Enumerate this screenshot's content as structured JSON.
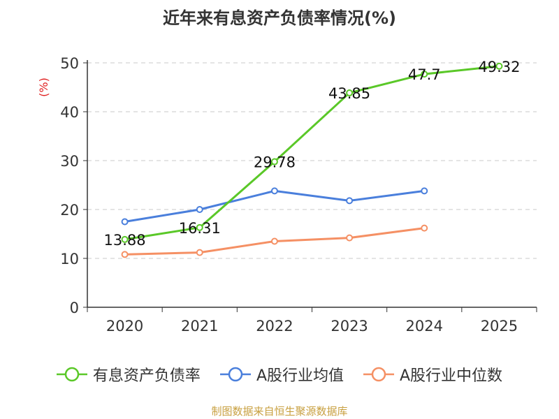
{
  "title": "近年来有息资产负债率情况(%)",
  "source_note": "制图数据来自恒生聚源数据库",
  "chart_data": {
    "type": "line",
    "title": "近年来有息资产负债率情况(%)",
    "ylabel": "(%)",
    "xlabel": "",
    "categories": [
      "2020",
      "2021",
      "2022",
      "2023",
      "2024",
      "2025"
    ],
    "ylim": [
      0,
      50
    ],
    "yticks": [
      0,
      10,
      20,
      30,
      40,
      50
    ],
    "grid": true,
    "legend_position": "bottom",
    "series": [
      {
        "name": "有息资产负债率",
        "color": "#5ac828",
        "values": [
          13.88,
          16.31,
          29.78,
          43.85,
          47.7,
          49.32
        ],
        "labels": [
          "13.88",
          "16.31",
          "29.78",
          "43.85",
          "47.7",
          "49.32"
        ]
      },
      {
        "name": "A股行业均值",
        "color": "#4a7fdc",
        "values": [
          17.5,
          20.0,
          23.8,
          21.8,
          23.8,
          null
        ]
      },
      {
        "name": "A股行业中位数",
        "color": "#f59064",
        "values": [
          10.8,
          11.2,
          13.5,
          14.2,
          16.2,
          null
        ]
      }
    ]
  }
}
